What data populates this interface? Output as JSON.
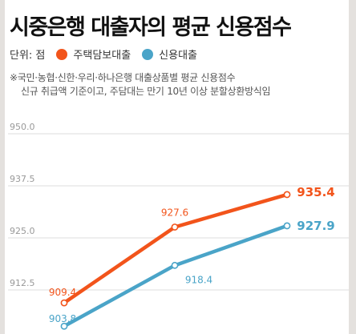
{
  "title": "시중은행 대출자의 평균 신용점수",
  "legend": {
    "unit": "단위: 점",
    "items": [
      {
        "label": "주택담보대출",
        "color": "#f2541b"
      },
      {
        "label": "신용대출",
        "color": "#4aa4c8"
      }
    ]
  },
  "note": {
    "line1": "※국민·농협·신한·우리·하나은행 대출상품별 평균 신용점수",
    "line2": "신규 취급액 기준이고, 주담대는 만기 10년 이상 분할상환방식임"
  },
  "chart_data": {
    "type": "line",
    "ylim": [
      900.0,
      950.0
    ],
    "yticks": [
      "950.0",
      "937.5",
      "925.0",
      "912.5"
    ],
    "ytick_values": [
      950.0,
      937.5,
      925.0,
      912.5
    ],
    "x": [
      0,
      1,
      2
    ],
    "grid": true,
    "series": [
      {
        "name": "주택담보대출",
        "color": "#f2541b",
        "values": [
          909.4,
          927.6,
          935.4
        ],
        "labels": [
          "909.4",
          "927.6",
          "935.4"
        ]
      },
      {
        "name": "신용대출",
        "color": "#4aa4c8",
        "values": [
          903.8,
          918.4,
          927.9
        ],
        "labels": [
          "903.8",
          "918.4",
          "927.9"
        ]
      }
    ]
  }
}
